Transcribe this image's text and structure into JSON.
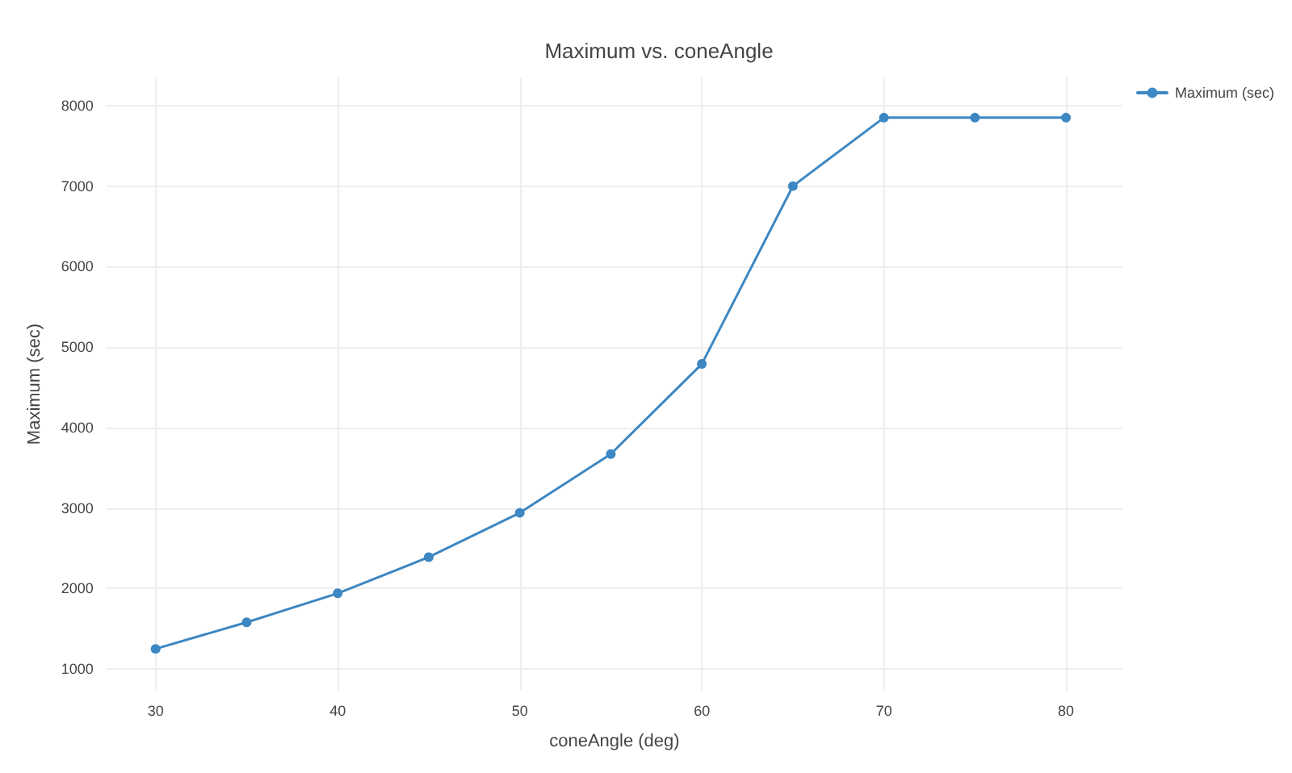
{
  "chart_data": {
    "type": "line",
    "title": "Maximum vs. coneAngle",
    "xlabel": "coneAngle (deg)",
    "ylabel": "Maximum (sec)",
    "x": [
      30,
      35,
      40,
      45,
      50,
      55,
      60,
      65,
      70,
      75,
      80
    ],
    "series": [
      {
        "name": "Maximum (sec)",
        "color": "#3d87c2",
        "values": [
          1250,
          1580,
          1940,
          2390,
          2940,
          3670,
          4790,
          7000,
          7850,
          7850,
          7850
        ]
      }
    ],
    "xlim": [
      27.3,
      83.1
    ],
    "ylim": [
      730,
      8350
    ],
    "xticks": [
      30,
      40,
      50,
      60,
      70,
      80
    ],
    "yticks": [
      1000,
      2000,
      3000,
      4000,
      5000,
      6000,
      7000,
      8000
    ],
    "grid": true,
    "legend": "top right",
    "marker": "circle",
    "line_style": "solid"
  }
}
